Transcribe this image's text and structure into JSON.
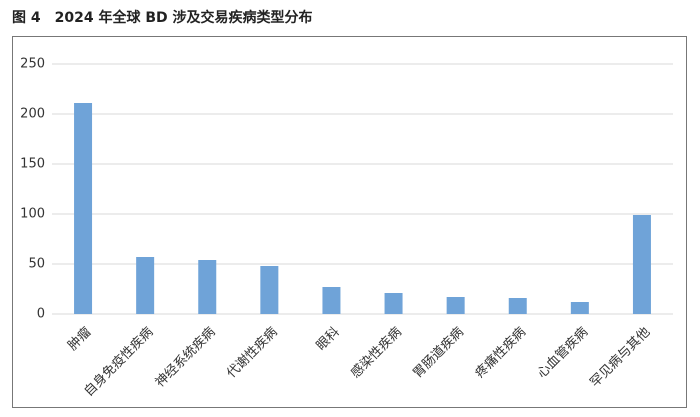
{
  "chart_data": {
    "type": "bar",
    "title": "图 4　2024 年全球 BD 涉及交易疾病类型分布",
    "categories": [
      "肿瘤",
      "自身免疫性疾病",
      "神经系统疾病",
      "代谢性疾病",
      "眼科",
      "感染性疾病",
      "胃肠道疾病",
      "疼痛性疾病",
      "心血管疾病",
      "罕见病与其他"
    ],
    "values": [
      211,
      57,
      54,
      48,
      27,
      21,
      17,
      16,
      12,
      99
    ],
    "color": "#6fa3d8",
    "ylim": [
      0,
      250
    ],
    "yticks": [
      0,
      50,
      100,
      150,
      200,
      250
    ],
    "grid": true
  }
}
